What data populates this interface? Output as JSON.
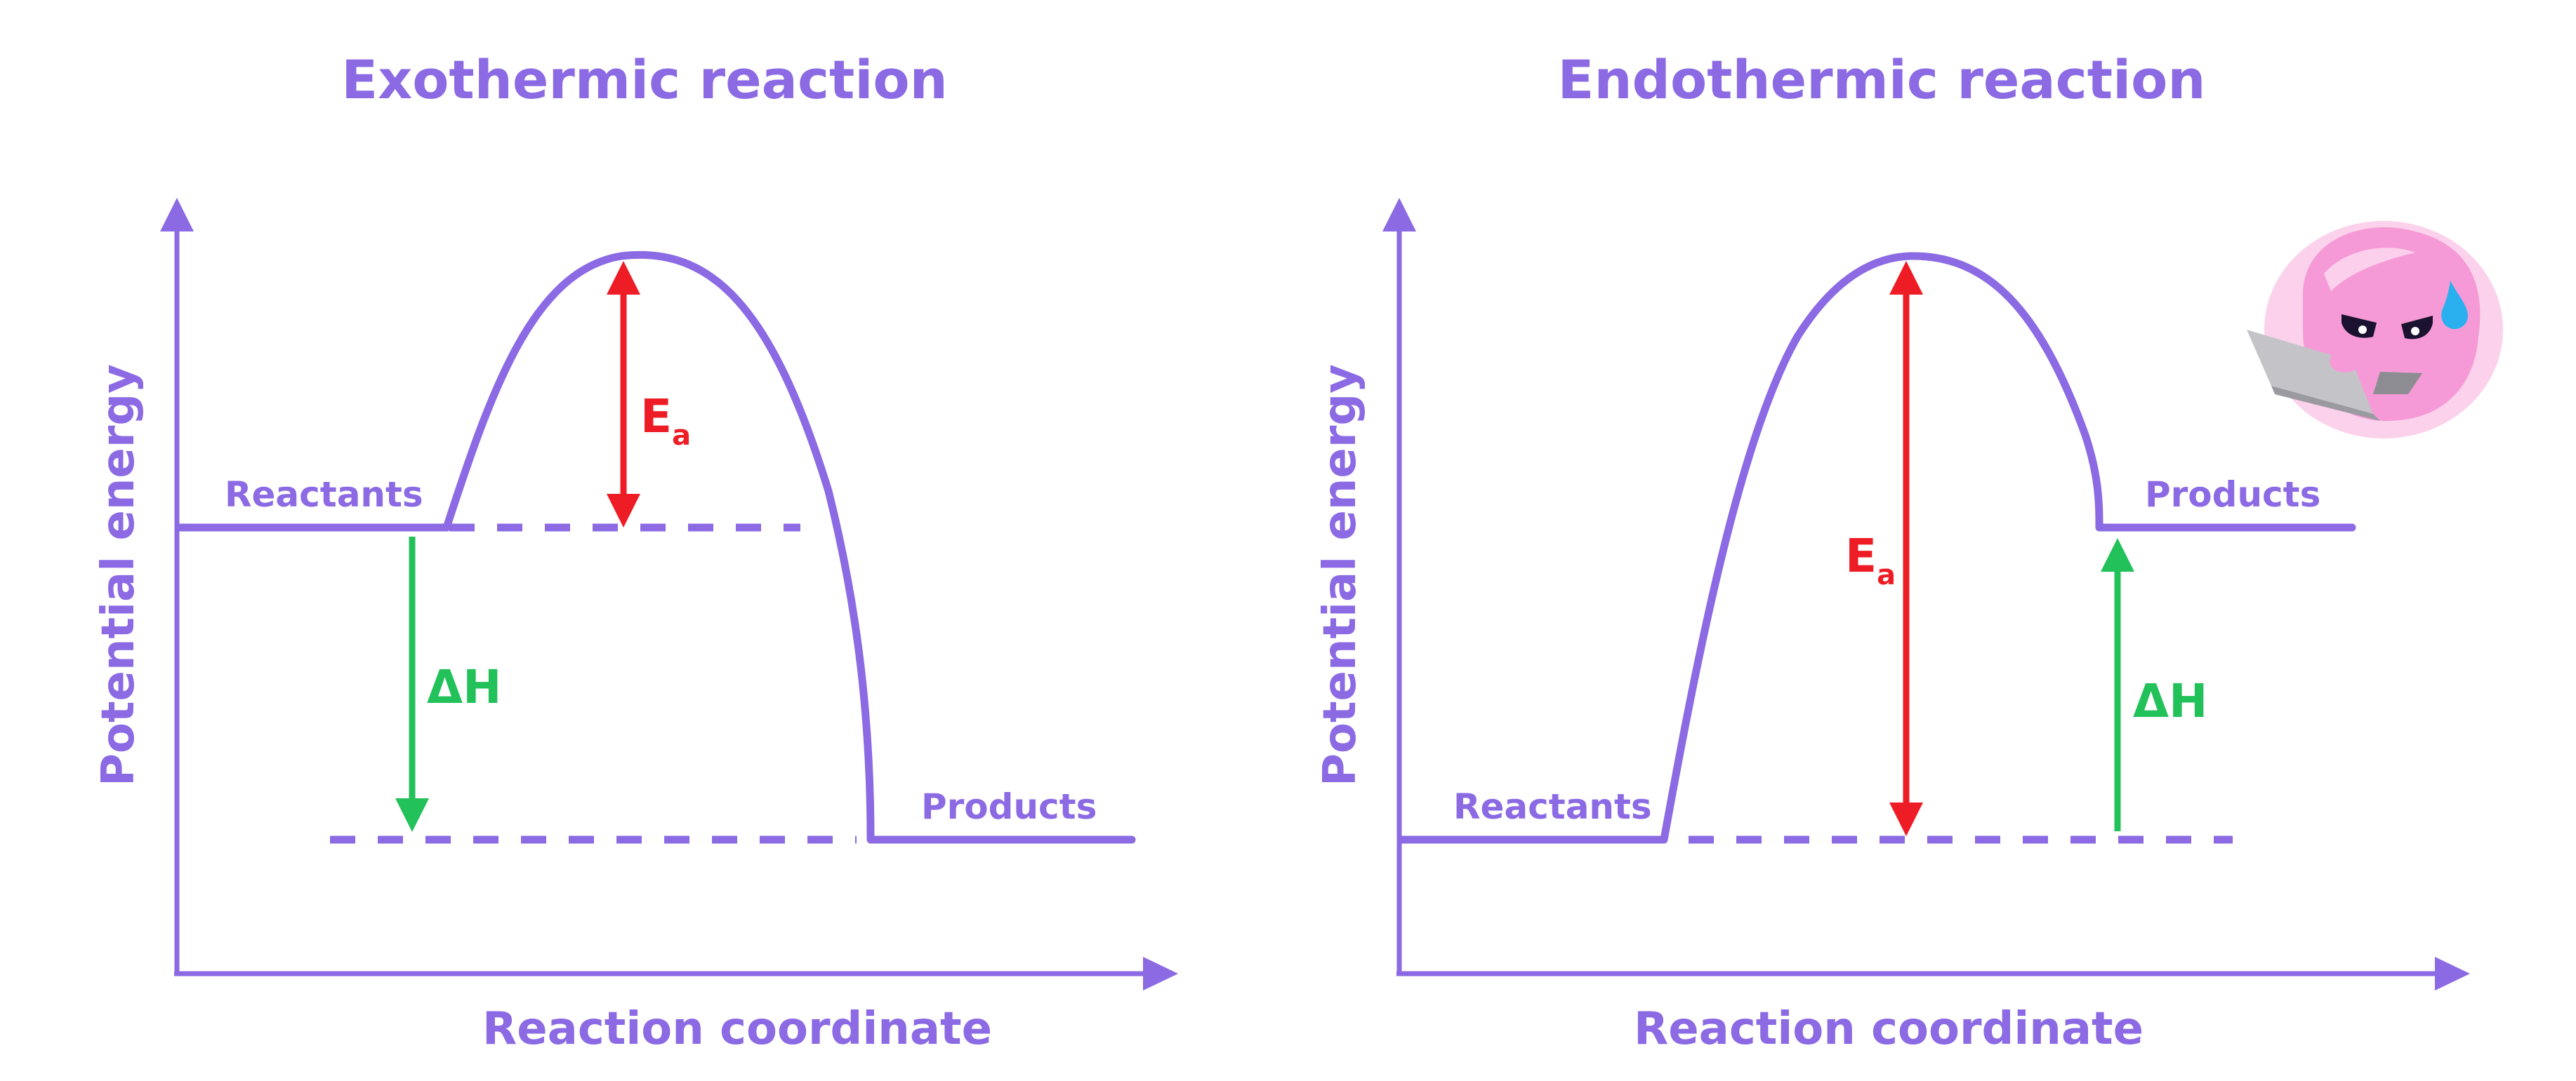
{
  "colors": {
    "primary": "#8b6ae4",
    "activation": "#ee1c25",
    "enthalpy": "#22c15a",
    "mascot": "#f59ad6"
  },
  "exothermic": {
    "title": "Exothermic reaction",
    "ylabel": "Potential energy",
    "xlabel": "Reaction coordinate",
    "reactants_label": "Reactants",
    "products_label": "Products",
    "activation_label": "E",
    "activation_sub": "a",
    "enthalpy_label": "ΔH"
  },
  "endothermic": {
    "title": "Endothermic reaction",
    "ylabel": "Potential energy",
    "xlabel": "Reaction coordinate",
    "reactants_label": "Reactants",
    "products_label": "Products",
    "activation_label": "E",
    "activation_sub": "a",
    "enthalpy_label": "ΔH"
  },
  "mascot": {
    "icon": "blob-mascot-with-laptop-icon"
  }
}
